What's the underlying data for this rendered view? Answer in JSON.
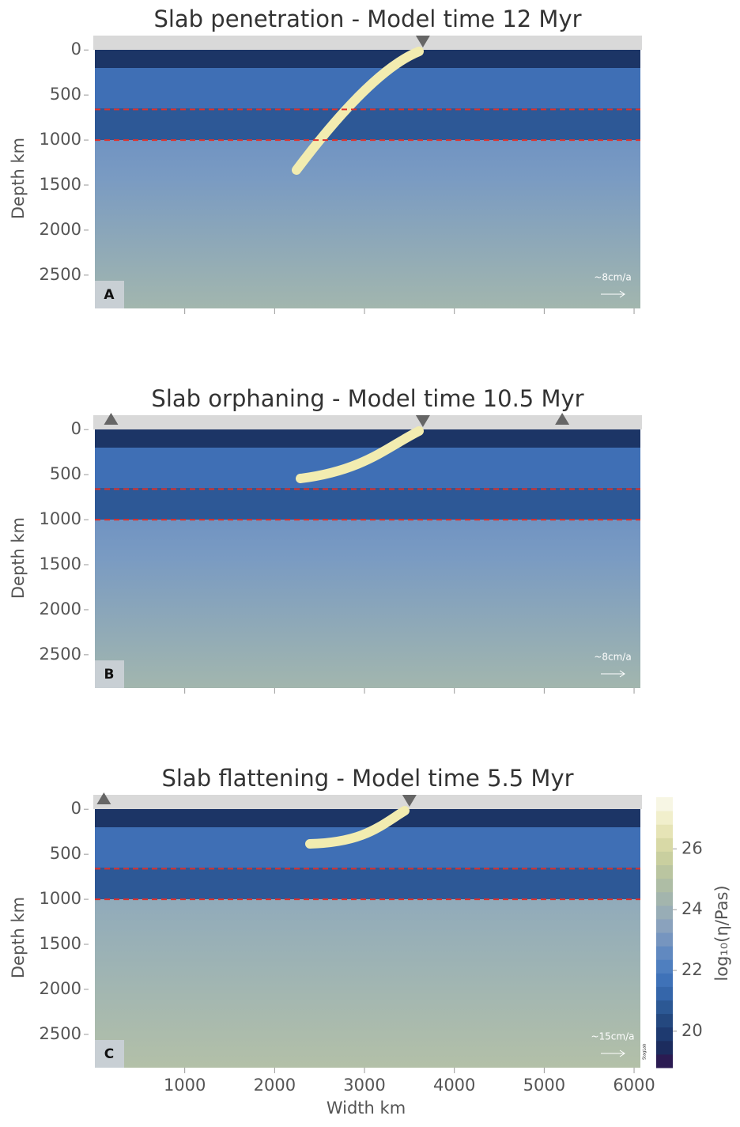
{
  "chart_data": [
    {
      "type": "contour",
      "title": "Slab penetration - Model time 12 Myr",
      "ylabel": "Depth km",
      "panel_label": "A",
      "velocity_scale": "~8cm/a",
      "xlim": [
        0,
        6070
      ],
      "ylim": [
        -160,
        2870
      ],
      "yticks": [
        0,
        500,
        1000,
        1500,
        2000,
        2500
      ],
      "reference_lines": [
        660,
        1000
      ],
      "trench_x": [
        3650
      ]
    },
    {
      "type": "contour",
      "title": "Slab orphaning - Model time 10.5 Myr",
      "ylabel": "Depth km",
      "panel_label": "B",
      "velocity_scale": "~8cm/a",
      "xlim": [
        0,
        6070
      ],
      "ylim": [
        -160,
        2870
      ],
      "yticks": [
        0,
        500,
        1000,
        1500,
        2000,
        2500
      ],
      "reference_lines": [
        660,
        1000
      ],
      "trench_x": [
        180,
        3650,
        5200
      ]
    },
    {
      "type": "contour",
      "title": "Slab flattening - Model time 5.5 Myr",
      "ylabel": "Depth km",
      "xlabel": "Width km",
      "panel_label": "C",
      "velocity_scale": "~15cm/a",
      "credit": "StagLab",
      "xlim": [
        0,
        6070
      ],
      "ylim": [
        -160,
        2870
      ],
      "yticks": [
        0,
        500,
        1000,
        1500,
        2000,
        2500
      ],
      "xticks": [
        1000,
        2000,
        3000,
        4000,
        5000,
        6000
      ],
      "reference_lines": [
        660,
        1000
      ],
      "trench_x": [
        100,
        3500
      ],
      "colorbar": {
        "label": "log₁₀(η/Pas)",
        "lim": [
          18.8,
          27.7
        ],
        "ticks": [
          20,
          22,
          24,
          26
        ]
      }
    }
  ]
}
